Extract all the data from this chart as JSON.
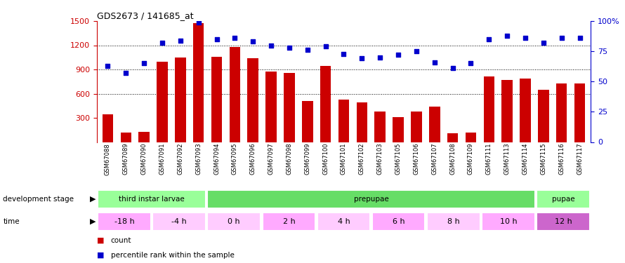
{
  "title": "GDS2673 / 141685_at",
  "samples": [
    "GSM67088",
    "GSM67089",
    "GSM67090",
    "GSM67091",
    "GSM67092",
    "GSM67093",
    "GSM67094",
    "GSM67095",
    "GSM67096",
    "GSM67097",
    "GSM67098",
    "GSM67099",
    "GSM67100",
    "GSM67101",
    "GSM67102",
    "GSM67103",
    "GSM67105",
    "GSM67106",
    "GSM67107",
    "GSM67108",
    "GSM67109",
    "GSM67111",
    "GSM67113",
    "GSM67114",
    "GSM67115",
    "GSM67116",
    "GSM67117"
  ],
  "counts": [
    340,
    120,
    130,
    1000,
    1050,
    1470,
    1060,
    1175,
    1035,
    870,
    860,
    510,
    940,
    530,
    490,
    380,
    310,
    380,
    440,
    110,
    120,
    810,
    770,
    790,
    650,
    730,
    730
  ],
  "percentiles": [
    63,
    57,
    65,
    82,
    84,
    99,
    85,
    86,
    83,
    80,
    78,
    76,
    79,
    73,
    69,
    70,
    72,
    75,
    66,
    61,
    65,
    85,
    88,
    86,
    82,
    86,
    86
  ],
  "ylim_left": [
    0,
    1500
  ],
  "ylim_right": [
    0,
    100
  ],
  "yticks_left": [
    300,
    600,
    900,
    1200,
    1500
  ],
  "yticks_right": [
    0,
    25,
    50,
    75,
    100
  ],
  "bar_color": "#cc0000",
  "dot_color": "#0000cc",
  "bg_color": "#ffffff",
  "xticklabel_bg": "#cccccc",
  "dev_stage_row": [
    {
      "label": "third instar larvae",
      "color": "#99ff99",
      "start": 0,
      "end": 6
    },
    {
      "label": "prepupae",
      "color": "#66dd66",
      "start": 6,
      "end": 24
    },
    {
      "label": "pupae",
      "color": "#99ff99",
      "start": 24,
      "end": 27
    }
  ],
  "time_row": [
    {
      "label": "-18 h",
      "color": "#ffaaff",
      "start": 0,
      "end": 3
    },
    {
      "label": "-4 h",
      "color": "#ffccff",
      "start": 3,
      "end": 6
    },
    {
      "label": "0 h",
      "color": "#ffccff",
      "start": 6,
      "end": 9
    },
    {
      "label": "2 h",
      "color": "#ffaaff",
      "start": 9,
      "end": 12
    },
    {
      "label": "4 h",
      "color": "#ffccff",
      "start": 12,
      "end": 15
    },
    {
      "label": "6 h",
      "color": "#ffaaff",
      "start": 15,
      "end": 18
    },
    {
      "label": "8 h",
      "color": "#ffccff",
      "start": 18,
      "end": 21
    },
    {
      "label": "10 h",
      "color": "#ffaaff",
      "start": 21,
      "end": 24
    },
    {
      "label": "12 h",
      "color": "#cc66cc",
      "start": 24,
      "end": 27
    }
  ],
  "legend_items": [
    {
      "label": "count",
      "color": "#cc0000"
    },
    {
      "label": "percentile rank within the sample",
      "color": "#0000cc"
    }
  ],
  "fig_width": 8.9,
  "fig_height": 3.75,
  "dpi": 100
}
